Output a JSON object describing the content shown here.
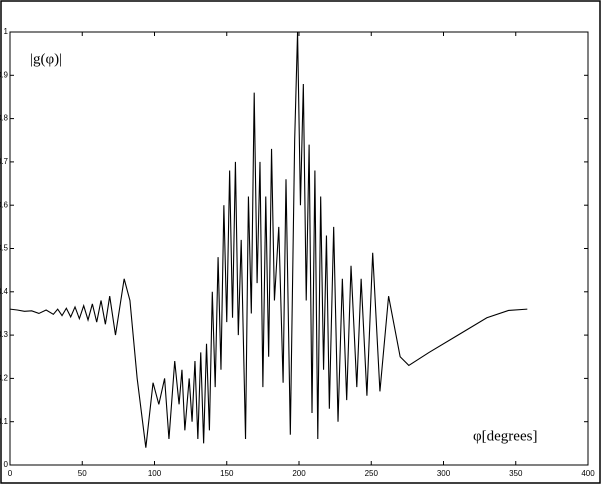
{
  "chart_data": {
    "type": "line",
    "annotations": [
      "|g(φ)|",
      "φ[degrees]"
    ],
    "x": [
      0,
      5,
      10,
      15,
      20,
      25,
      30,
      33,
      36,
      39,
      42,
      45,
      48,
      51,
      54,
      57,
      60,
      63,
      66,
      69,
      73,
      79,
      83,
      88,
      94,
      99,
      103,
      107,
      110,
      114,
      117,
      119,
      121,
      124,
      126,
      128,
      130,
      132,
      134,
      136,
      138,
      140,
      142,
      144,
      146,
      148,
      150,
      152,
      154,
      156,
      158,
      160,
      163,
      165,
      167,
      169,
      171,
      173,
      175,
      177,
      179,
      181,
      183,
      186,
      189,
      191,
      194,
      197,
      199,
      201,
      203,
      205,
      207,
      209,
      211,
      213,
      215,
      217,
      219,
      221,
      224,
      227,
      230,
      233,
      236,
      240,
      243,
      247,
      251,
      256,
      262,
      270,
      276,
      290,
      310,
      330,
      345,
      358
    ],
    "series": [
      {
        "color": "#000000",
        "values": [
          0.36,
          0.358,
          0.355,
          0.356,
          0.35,
          0.358,
          0.348,
          0.36,
          0.345,
          0.362,
          0.342,
          0.365,
          0.338,
          0.368,
          0.335,
          0.372,
          0.33,
          0.38,
          0.325,
          0.39,
          0.3,
          0.43,
          0.38,
          0.2,
          0.04,
          0.19,
          0.14,
          0.2,
          0.06,
          0.24,
          0.14,
          0.22,
          0.08,
          0.2,
          0.1,
          0.24,
          0.06,
          0.26,
          0.05,
          0.28,
          0.08,
          0.4,
          0.18,
          0.48,
          0.22,
          0.6,
          0.33,
          0.68,
          0.34,
          0.7,
          0.3,
          0.52,
          0.06,
          0.62,
          0.35,
          0.86,
          0.42,
          0.7,
          0.18,
          0.62,
          0.25,
          0.73,
          0.38,
          0.55,
          0.19,
          0.66,
          0.07,
          0.75,
          1.0,
          0.6,
          0.88,
          0.38,
          0.74,
          0.12,
          0.68,
          0.06,
          0.62,
          0.22,
          0.53,
          0.13,
          0.55,
          0.1,
          0.43,
          0.15,
          0.46,
          0.18,
          0.43,
          0.16,
          0.49,
          0.17,
          0.39,
          0.25,
          0.23,
          0.26,
          0.3,
          0.34,
          0.357,
          0.36
        ]
      }
    ],
    "xlim": [
      0,
      400
    ],
    "xticks": [
      0,
      50,
      100,
      150,
      200,
      250,
      300,
      350,
      400
    ],
    "ylim": [
      0,
      1
    ],
    "yticks": [
      0,
      0.1,
      0.2,
      0.3,
      0.4,
      0.5,
      0.6,
      0.7,
      0.8,
      0.9,
      1
    ]
  }
}
